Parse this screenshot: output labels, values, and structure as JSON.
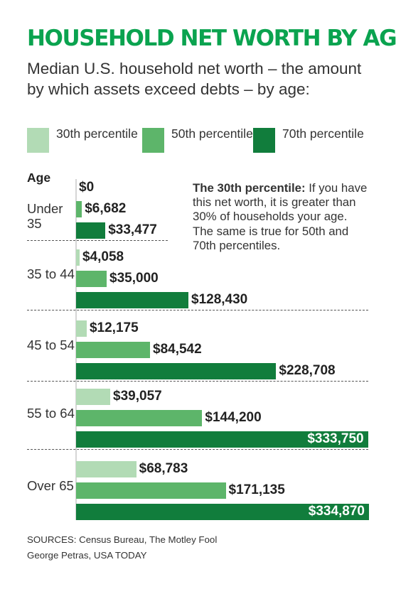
{
  "title": "HOUSEHOLD NET WORTH BY AGE",
  "subtitle": "Median U.S. household net worth – the amount by which assets exceed debts – by age:",
  "chart_data": {
    "type": "bar",
    "orientation": "horizontal",
    "grouping": "age-group",
    "y_axis_title": "Age",
    "legend_placement": "top",
    "grid": false,
    "xlim": [
      0,
      334870
    ],
    "categories": [
      "Under 35",
      "35 to 44",
      "45 to 54",
      "55 to 64",
      "Over 65"
    ],
    "series": [
      {
        "name": "30th percentile",
        "color": "#b2dbb5",
        "values": [
          0,
          4058,
          12175,
          39057,
          68783
        ],
        "labels": [
          "$0",
          "$4,058",
          "$12,175",
          "$39,057",
          "$68,783"
        ]
      },
      {
        "name": "50th percentile",
        "color": "#5db56a",
        "values": [
          6682,
          35000,
          84542,
          144200,
          171135
        ],
        "labels": [
          "$6,682",
          "$35,000",
          "$84,542",
          "$144,200",
          "$171,135"
        ]
      },
      {
        "name": "70th percentile",
        "color": "#117d3c",
        "values": [
          33477,
          128430,
          228708,
          333750,
          334870
        ],
        "labels": [
          "$33,477",
          "$128,430",
          "$228,708",
          "$333,750",
          "$334,870"
        ]
      }
    ]
  },
  "note": {
    "title": "The 30th percentile:",
    "text": "If you have this net worth, it is greater than 30% of households your age. The same is true for 50th and 70th percentiles."
  },
  "sources": "SOURCES:  Census  Bureau, The Motley Fool",
  "credit": "George Petras, USA TODAY"
}
